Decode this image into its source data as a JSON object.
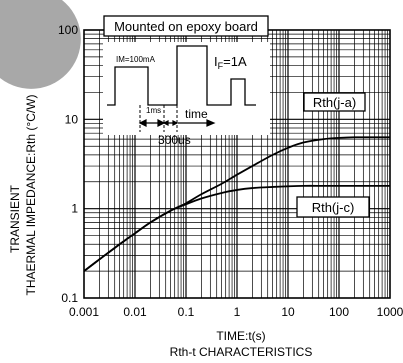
{
  "chart_data": {
    "type": "line",
    "xscale": "log",
    "yscale": "log",
    "xlim": [
      0.001,
      1000
    ],
    "ylim": [
      0.1,
      100
    ],
    "xticks": [
      "0.001",
      "0.01",
      "0.1",
      "1",
      "10",
      "100",
      "1000"
    ],
    "yticks": [
      "100",
      "10",
      "1",
      "0.1"
    ],
    "xlabel": "TIME:t(s)",
    "ylabel_line1": "TRANSIENT",
    "ylabel_line2": "THAERMAL IMPEDANCE:Rth (°C/W)",
    "caption": "Rth-t CHARACTERISTICS",
    "annotation_box": "Mounted on epoxy board",
    "inset": {
      "im_label": "IM=100mA",
      "if_label": "I",
      "if_sub": "F",
      "if_value": "=1A",
      "pulse_label": "1ms",
      "period_label": "300us",
      "time_label": "time"
    },
    "series": [
      {
        "name": "Rth(j-a)",
        "x": [
          0.001,
          0.002,
          0.005,
          0.01,
          0.02,
          0.05,
          0.1,
          0.2,
          0.5,
          1,
          2,
          5,
          10,
          20,
          50,
          100,
          200,
          500,
          1000
        ],
        "y": [
          0.2,
          0.27,
          0.4,
          0.53,
          0.7,
          0.95,
          1.15,
          1.45,
          1.9,
          2.4,
          3.0,
          4.0,
          4.8,
          5.5,
          6.0,
          6.2,
          6.3,
          6.3,
          6.3
        ]
      },
      {
        "name": "Rth(j-c)",
        "x": [
          0.001,
          0.002,
          0.005,
          0.01,
          0.02,
          0.05,
          0.1,
          0.2,
          0.5,
          1,
          2,
          5,
          10,
          20,
          50,
          100,
          200,
          500,
          1000
        ],
        "y": [
          0.2,
          0.27,
          0.4,
          0.53,
          0.7,
          0.95,
          1.12,
          1.3,
          1.5,
          1.62,
          1.7,
          1.75,
          1.78,
          1.8,
          1.8,
          1.8,
          1.8,
          1.8,
          1.8
        ]
      }
    ]
  }
}
